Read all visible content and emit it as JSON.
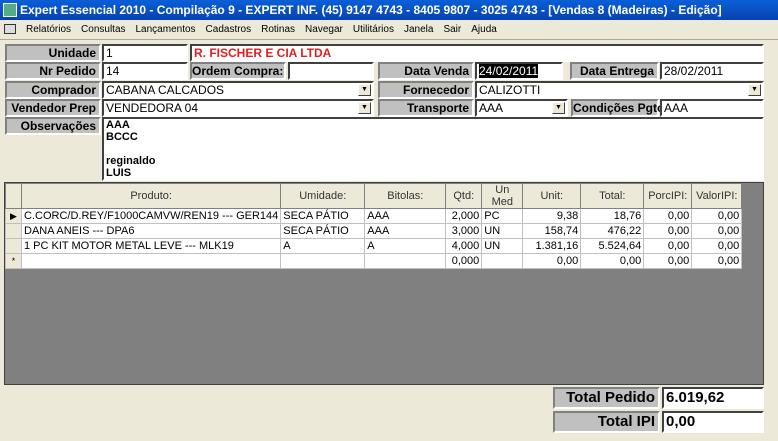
{
  "window": {
    "title": "Expert Essencial 2010 - Compilação 9 - EXPERT INF. (45) 9147 4743 - 8405 9807 - 3025 4743 - [Vendas 8 (Madeiras) - Edição]"
  },
  "menu": [
    "Relatórios",
    "Consultas",
    "Lançamentos",
    "Cadastros",
    "Rotinas",
    "Navegar",
    "Utilitários",
    "Janela",
    "Sair",
    "Ajuda"
  ],
  "form": {
    "unidade_label": "Unidade",
    "unidade": "1",
    "unidade_nome": "R. FISCHER E CIA LTDA",
    "nr_pedido_label": "Nr Pedido",
    "nr_pedido": "14",
    "ordem_compra_label": "Ordem Compra:",
    "ordem_compra": "",
    "data_venda_label": "Data Venda",
    "data_venda_sel": "24",
    "data_venda_rest": "/02/2011",
    "data_entrega_label": "Data Entrega",
    "data_entrega": "28/02/2011",
    "comprador_label": "Comprador",
    "comprador": "CABANA CALCADOS",
    "fornecedor_label": "Fornecedor",
    "fornecedor": "CALIZOTTI",
    "vendedor_label": "Vendedor Prep",
    "vendedor": "VENDEDORA 04",
    "transporte_label": "Transporte",
    "transporte": "AAA",
    "condicoes_label": "Condições Pgto",
    "condicoes": "AAA",
    "observacoes_label": "Observações",
    "observacoes": [
      "AAA",
      "BCCC",
      "",
      "reginaldo",
      "LUIS"
    ]
  },
  "grid": {
    "headers": [
      "Produto:",
      "Umidade:",
      "Bitolas:",
      "Qtd:",
      "Un Med",
      "Unit:",
      "Total:",
      "PorcIPI:",
      "ValorIPI:"
    ],
    "rows": [
      [
        "C.CORC/D.REY/F1000CAMVW/REN19 --- GER144",
        "SECA PÁTIO",
        "AAA",
        "2,000",
        "PC",
        "9,38",
        "18,76",
        "0,00",
        "0,00"
      ],
      [
        "DANA ANEIS --- DPA6",
        "SECA PÁTIO",
        "AAA",
        "3,000",
        "UN",
        "158,74",
        "476,22",
        "0,00",
        "0,00"
      ],
      [
        "1 PC  KIT  MOTOR    METAL  LEVE --- MLK19",
        "A",
        "A",
        "4,000",
        "UN",
        "1.381,16",
        "5.524,64",
        "0,00",
        "0,00"
      ],
      [
        "",
        "",
        "",
        "0,000",
        "",
        "0,00",
        "0,00",
        "0,00",
        "0,00"
      ]
    ],
    "indicators": [
      "▶",
      "",
      "",
      "*"
    ]
  },
  "totals": {
    "total_pedido_label": "Total Pedido",
    "total_pedido": "6.019,62",
    "total_ipi_label": "Total IPI",
    "total_ipi": "0,00"
  }
}
